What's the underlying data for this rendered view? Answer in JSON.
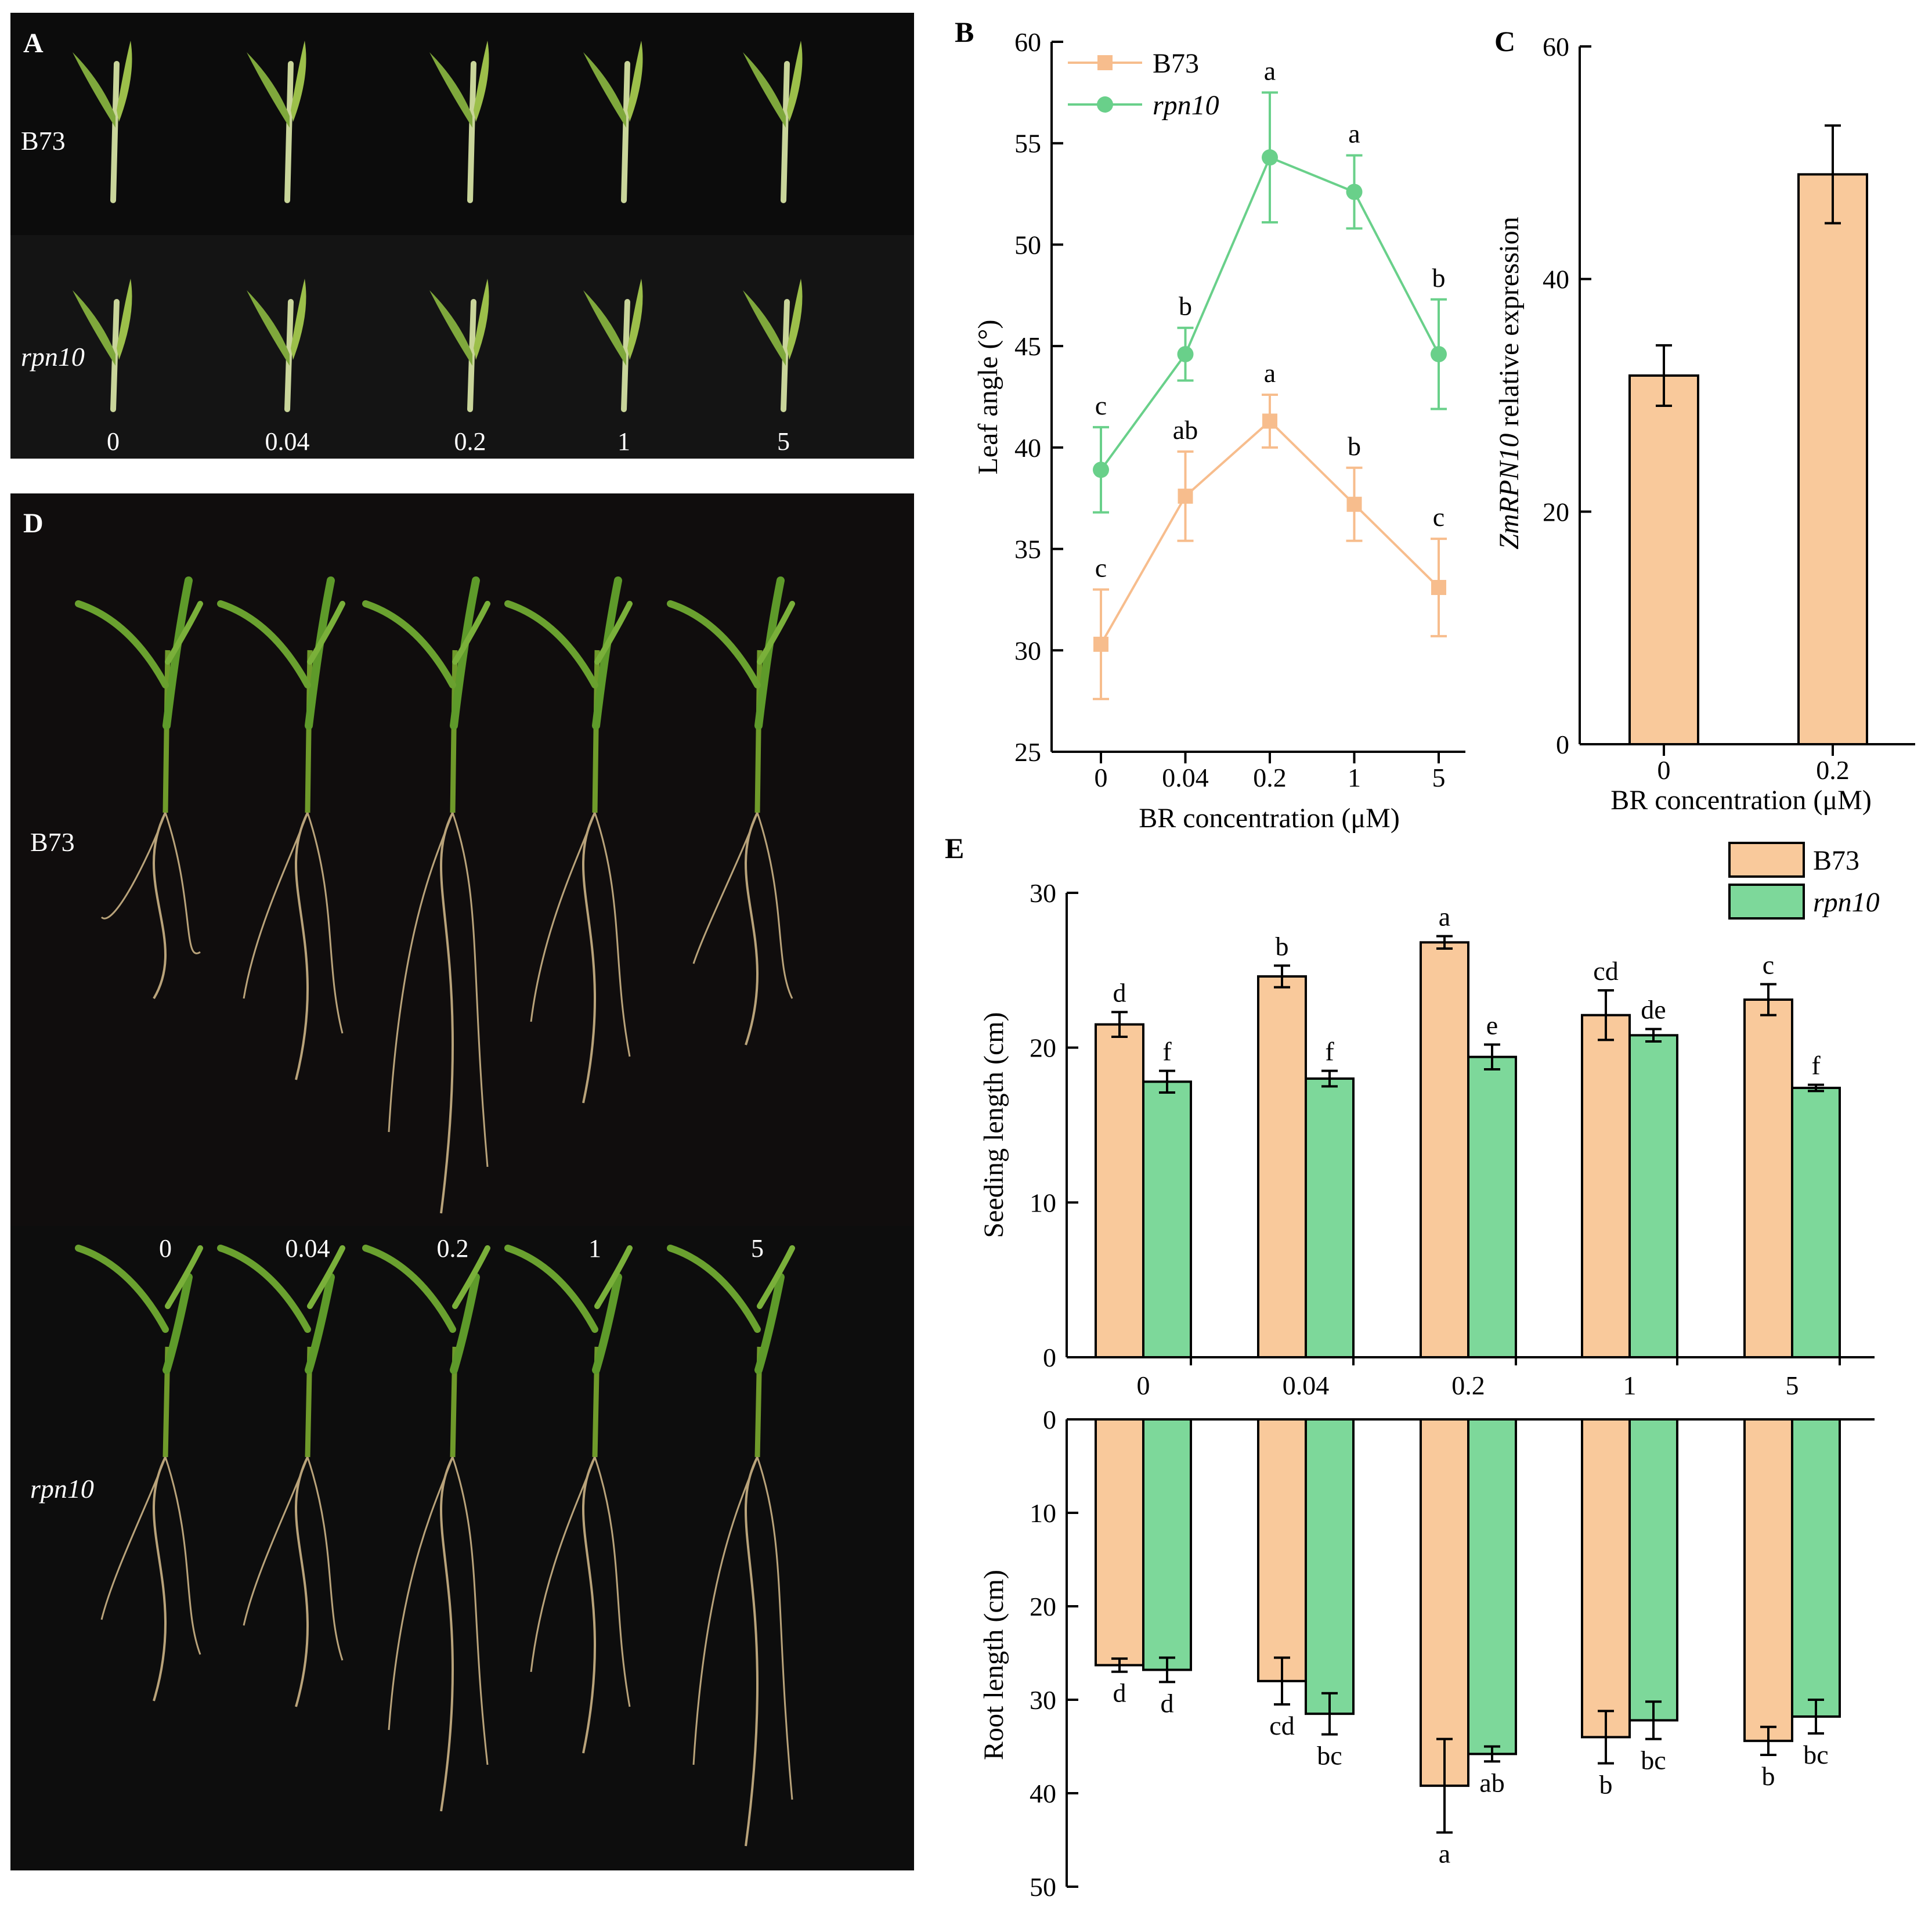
{
  "panels": {
    "A": {
      "label": "A",
      "rows": [
        {
          "name": "B73",
          "italic": false
        },
        {
          "name": "rpn10",
          "italic": true
        }
      ],
      "concentrations": [
        "0",
        "0.04",
        "0.2",
        "1",
        "5"
      ]
    },
    "D": {
      "label": "D",
      "rows": [
        {
          "name": "B73",
          "italic": false
        },
        {
          "name": "rpn10",
          "italic": true
        }
      ],
      "concentrations": [
        "0",
        "0.04",
        "0.2",
        "1",
        "5"
      ]
    },
    "B": {
      "label": "B"
    },
    "C": {
      "label": "C"
    },
    "E": {
      "label": "E"
    }
  },
  "colors": {
    "b73": "#f9c99b",
    "b73_line": "#f7bd8d",
    "rpn10": "#7dd89a",
    "rpn10_line": "#69d08a",
    "axis": "#000000",
    "photo_bg": "#0c0c0c"
  },
  "chart_data": [
    {
      "id": "B",
      "type": "line",
      "categories": [
        "0",
        "0.04",
        "0.2",
        "1",
        "5"
      ],
      "xlabel": "BR concentration (μM)",
      "ylabel": "Leaf angle (°)",
      "ylim": [
        25,
        60
      ],
      "yticks": [
        "25",
        "30",
        "35",
        "40",
        "45",
        "50",
        "55",
        "60"
      ],
      "legend": "top-left",
      "series": [
        {
          "name": "B73",
          "italic": false,
          "marker": "square",
          "values": [
            30.3,
            37.6,
            41.3,
            37.2,
            33.1
          ],
          "errors": [
            2.7,
            2.2,
            1.3,
            1.8,
            2.4
          ],
          "letters": [
            "c",
            "ab",
            "a",
            "b",
            "c"
          ]
        },
        {
          "name": "rpn10",
          "italic": true,
          "marker": "circle",
          "values": [
            38.9,
            44.6,
            54.3,
            52.6,
            44.6
          ],
          "errors": [
            2.1,
            1.3,
            3.2,
            1.8,
            2.7
          ],
          "letters": [
            "c",
            "b",
            "a",
            "a",
            "b"
          ]
        }
      ]
    },
    {
      "id": "C",
      "type": "bar",
      "categories": [
        "0",
        "0.2"
      ],
      "xlabel": "BR concentration (μM)",
      "ylabel_italic": "ZmRPN10",
      "ylabel_rest": " relative expression",
      "ylim": [
        0,
        60
      ],
      "yticks": [
        "0",
        "20",
        "40",
        "60"
      ],
      "values": [
        31.7,
        49.0
      ],
      "errors": [
        2.6,
        4.2
      ]
    },
    {
      "id": "E-top",
      "type": "bar",
      "categories": [
        "0",
        "0.04",
        "0.2",
        "1",
        "5"
      ],
      "ylabel": "Seeding length (cm)",
      "ylim": [
        0,
        30
      ],
      "yticks": [
        "0",
        "10",
        "20",
        "30"
      ],
      "legend": "top-right",
      "series": [
        {
          "name": "B73",
          "italic": false,
          "values": [
            21.5,
            24.6,
            26.8,
            22.1,
            23.1
          ],
          "errors": [
            0.8,
            0.7,
            0.4,
            1.6,
            1.0
          ],
          "letters": [
            "d",
            "b",
            "a",
            "cd",
            "c"
          ]
        },
        {
          "name": "rpn10",
          "italic": true,
          "values": [
            17.8,
            18.0,
            19.4,
            20.8,
            17.4
          ],
          "errors": [
            0.7,
            0.5,
            0.8,
            0.4,
            0.2
          ],
          "letters": [
            "f",
            "f",
            "e",
            "de",
            "f"
          ]
        }
      ]
    },
    {
      "id": "E-bottom",
      "type": "bar",
      "orientation": "downward",
      "categories": [
        "0",
        "0.04",
        "0.2",
        "1",
        "5"
      ],
      "ylabel": "Root length (cm)",
      "ylim": [
        0,
        50
      ],
      "yticks": [
        "0",
        "10",
        "20",
        "30",
        "40",
        "50"
      ],
      "series": [
        {
          "name": "B73",
          "italic": false,
          "values": [
            26.3,
            28.0,
            39.2,
            34.0,
            34.4
          ],
          "errors": [
            0.7,
            2.5,
            5.0,
            2.8,
            1.5
          ],
          "letters": [
            "d",
            "cd",
            "a",
            "b",
            "b"
          ]
        },
        {
          "name": "rpn10",
          "italic": true,
          "values": [
            26.8,
            31.5,
            35.8,
            32.2,
            31.8
          ],
          "errors": [
            1.3,
            2.2,
            0.8,
            2.0,
            1.8
          ],
          "letters": [
            "d",
            "bc",
            "ab",
            "bc",
            "bc"
          ]
        }
      ]
    }
  ]
}
